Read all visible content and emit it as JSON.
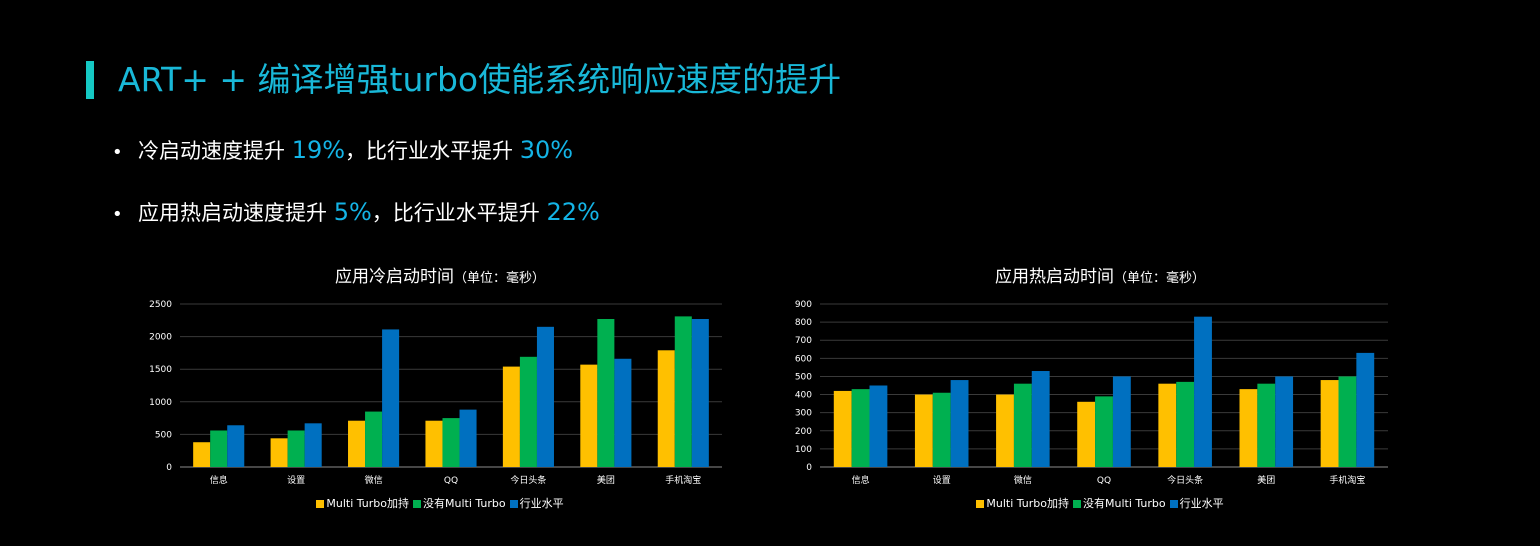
{
  "slide": {
    "title": "ART+ + 编译增强turbo使能系统响应速度的提升",
    "bullets": [
      {
        "marker": "•",
        "text1": "冷启动速度提升 ",
        "hl1": "19%",
        "text2": "，比行业水平提升 ",
        "hl2": "30%"
      },
      {
        "marker": "•",
        "text1": "应用热启动速度提升 ",
        "hl1": "5%",
        "text2": "，比行业水平提升 ",
        "hl2": "22%"
      }
    ]
  },
  "colors": {
    "accent": "#15c9c4",
    "title": "#19b8d8",
    "highlight": "#14b4e6",
    "series": [
      "#ffc000",
      "#00b050",
      "#0070c0"
    ]
  },
  "chart_data": [
    {
      "type": "bar",
      "title": "应用冷启动时间",
      "title_unit": "（单位：毫秒）",
      "categories": [
        "信息",
        "设置",
        "微信",
        "QQ",
        "今日头条",
        "美团",
        "手机淘宝"
      ],
      "series": [
        {
          "name": "Multi Turbo加持",
          "values": [
            380,
            440,
            710,
            710,
            1540,
            1570,
            1790
          ]
        },
        {
          "name": "没有Multi Turbo",
          "values": [
            560,
            560,
            850,
            750,
            1690,
            2270,
            2310
          ]
        },
        {
          "name": "行业水平",
          "values": [
            640,
            670,
            2110,
            880,
            2150,
            1660,
            2270
          ]
        }
      ],
      "ylim": [
        0,
        2500
      ],
      "yticks": [
        "0",
        "500",
        "1000",
        "1500",
        "2000",
        "2500"
      ],
      "grid": true,
      "legend": "bottom"
    },
    {
      "type": "bar",
      "title": "应用热启动时间",
      "title_unit": "（单位：毫秒）",
      "categories": [
        "信息",
        "设置",
        "微信",
        "QQ",
        "今日头条",
        "美团",
        "手机淘宝"
      ],
      "series": [
        {
          "name": "Multi Turbo加持",
          "values": [
            420,
            400,
            400,
            360,
            460,
            430,
            480
          ]
        },
        {
          "name": "没有Multi Turbo",
          "values": [
            430,
            410,
            460,
            390,
            470,
            460,
            500
          ]
        },
        {
          "name": "行业水平",
          "values": [
            450,
            480,
            530,
            500,
            830,
            500,
            630
          ]
        }
      ],
      "ylim": [
        0,
        900
      ],
      "yticks": [
        "0",
        "100",
        "200",
        "300",
        "400",
        "500",
        "600",
        "700",
        "800",
        "900"
      ],
      "grid": true,
      "legend": "bottom"
    }
  ]
}
